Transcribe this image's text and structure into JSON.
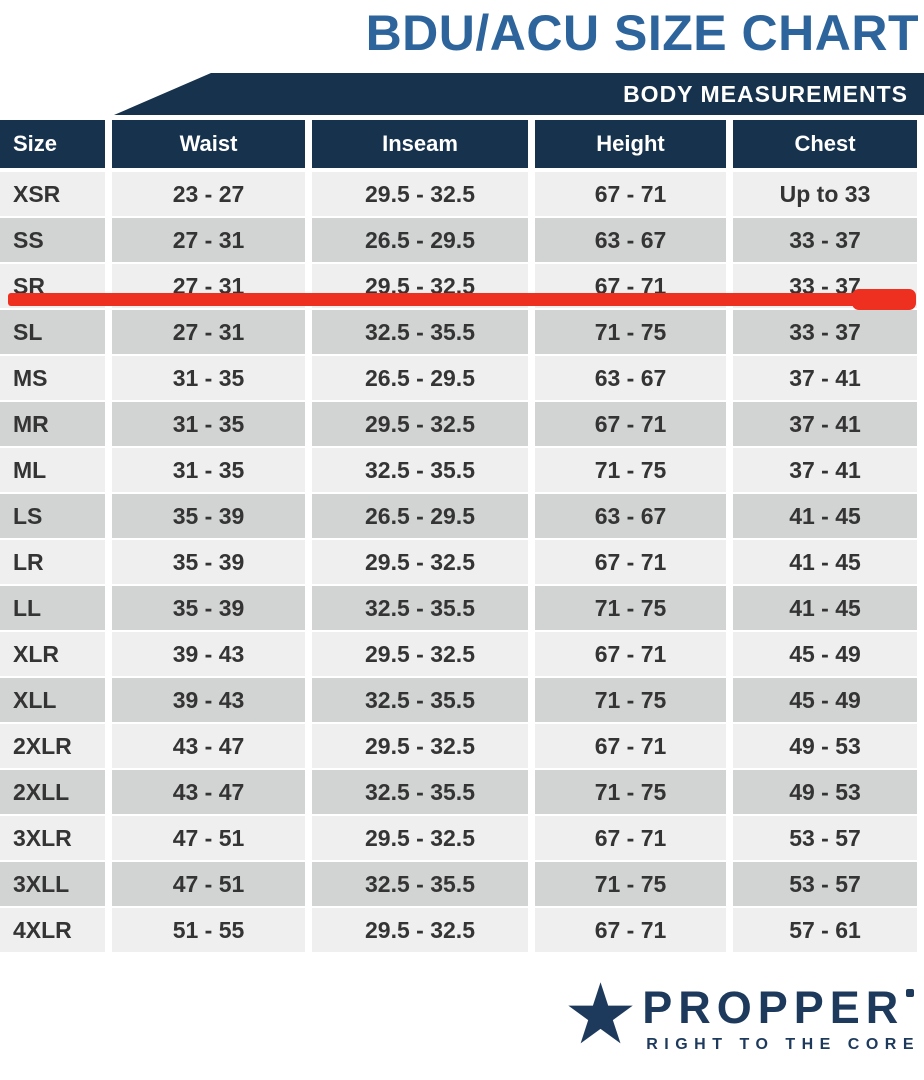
{
  "title": "BDU/ACU SIZE CHART",
  "banner": {
    "label": "BODY MEASUREMENTS"
  },
  "chart_data": {
    "type": "table",
    "title": "BDU/ACU SIZE CHART",
    "columns": [
      "Size",
      "Waist",
      "Inseam",
      "Height",
      "Chest"
    ],
    "rows": [
      {
        "size": "XSR",
        "waist": "23 - 27",
        "inseam": "29.5 - 32.5",
        "height": "67 - 71",
        "chest": "Up to 33"
      },
      {
        "size": "SS",
        "waist": "27 - 31",
        "inseam": "26.5 - 29.5",
        "height": "63 - 67",
        "chest": "33 - 37"
      },
      {
        "size": "SR",
        "waist": "27 - 31",
        "inseam": "29.5 - 32.5",
        "height": "67 - 71",
        "chest": "33 - 37"
      },
      {
        "size": "SL",
        "waist": "27 - 31",
        "inseam": "32.5 - 35.5",
        "height": "71 - 75",
        "chest": "33 - 37"
      },
      {
        "size": "MS",
        "waist": "31 - 35",
        "inseam": "26.5 - 29.5",
        "height": "63 - 67",
        "chest": "37 - 41"
      },
      {
        "size": "MR",
        "waist": "31 - 35",
        "inseam": "29.5 - 32.5",
        "height": "67 - 71",
        "chest": "37 - 41"
      },
      {
        "size": "ML",
        "waist": "31 - 35",
        "inseam": "32.5 - 35.5",
        "height": "71 - 75",
        "chest": "37 - 41"
      },
      {
        "size": "LS",
        "waist": "35 - 39",
        "inseam": "26.5 - 29.5",
        "height": "63 - 67",
        "chest": "41 - 45"
      },
      {
        "size": "LR",
        "waist": "35 - 39",
        "inseam": "29.5 - 32.5",
        "height": "67 - 71",
        "chest": "41 - 45"
      },
      {
        "size": "LL",
        "waist": "35 - 39",
        "inseam": "32.5 - 35.5",
        "height": "71 - 75",
        "chest": "41 - 45"
      },
      {
        "size": "XLR",
        "waist": "39 - 43",
        "inseam": "29.5 - 32.5",
        "height": "67 - 71",
        "chest": "45 - 49"
      },
      {
        "size": "XLL",
        "waist": "39 - 43",
        "inseam": "32.5 - 35.5",
        "height": "71 - 75",
        "chest": "45 - 49"
      },
      {
        "size": "2XLR",
        "waist": "43 - 47",
        "inseam": "29.5 - 32.5",
        "height": "67 - 71",
        "chest": "49 - 53"
      },
      {
        "size": "2XLL",
        "waist": "43 - 47",
        "inseam": "32.5 - 35.5",
        "height": "71 - 75",
        "chest": "49 - 53"
      },
      {
        "size": "3XLR",
        "waist": "47 - 51",
        "inseam": "29.5 - 32.5",
        "height": "67 - 71",
        "chest": "53 - 57"
      },
      {
        "size": "3XLL",
        "waist": "47 - 51",
        "inseam": "32.5 - 35.5",
        "height": "71 - 75",
        "chest": "53 - 57"
      },
      {
        "size": "4XLR",
        "waist": "51 - 55",
        "inseam": "29.5 - 32.5",
        "height": "67 - 71",
        "chest": "57 - 61"
      }
    ],
    "highlighted_row": "SR"
  },
  "logo": {
    "star_icon": "star-icon",
    "brand": "PROPPER",
    "registered_mark": "®",
    "tagline": "RIGHT TO THE CORE"
  },
  "colors": {
    "navy": "#16324d",
    "title_blue": "#2d649b",
    "row_light": "#eeefee",
    "row_gray": "#d2d4d3",
    "highlight_red": "#ee3020",
    "logo_navy": "#1d3a5c"
  }
}
